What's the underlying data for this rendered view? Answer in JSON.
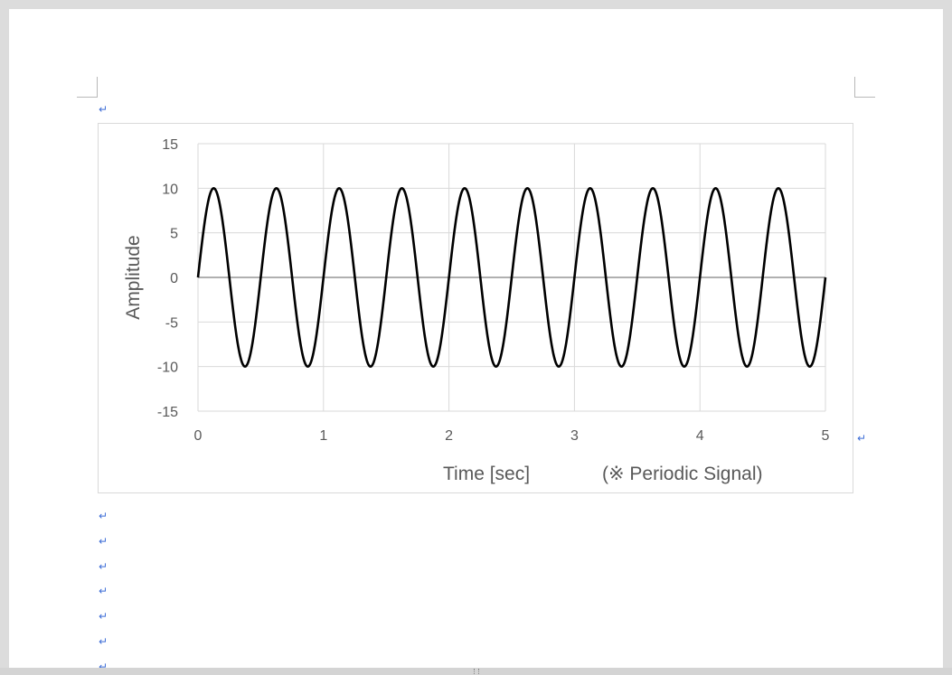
{
  "document": {
    "paragraph_mark": "↵",
    "empty_paragraph_count": 7
  },
  "chart_data": {
    "type": "line",
    "title": "",
    "xlabel": "Time [sec]",
    "annotation": "(※ Periodic Signal)",
    "ylabel": "Amplitude",
    "xlim": [
      0,
      5
    ],
    "ylim": [
      -15,
      15
    ],
    "x_ticks": [
      "0",
      "1",
      "2",
      "3",
      "4",
      "5"
    ],
    "y_ticks": [
      "15",
      "10",
      "5",
      "0",
      "-5",
      "-10",
      "-15"
    ],
    "grid": true,
    "legend": "none",
    "series": [
      {
        "function": "sine",
        "amplitude": 10,
        "frequency_hz": 2,
        "phase": 0,
        "x_start": 0,
        "x_end": 5,
        "sample_step": 0.005,
        "color": "#000000"
      }
    ],
    "colors": {
      "line": "#000000",
      "grid": "#d9d9d9",
      "zero_axis": "#808080",
      "tick_text": "#595959"
    }
  }
}
